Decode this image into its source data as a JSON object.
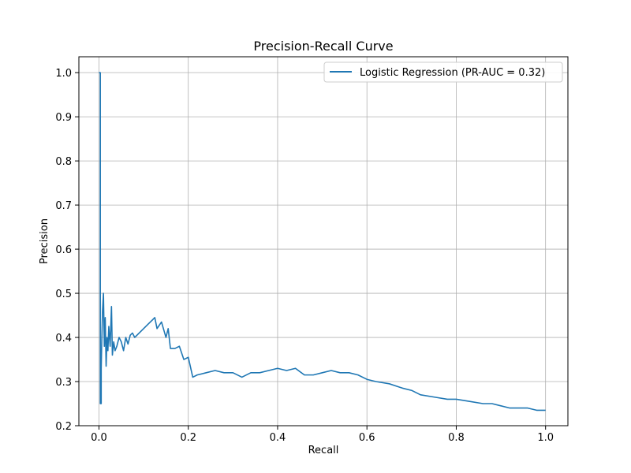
{
  "chart_data": {
    "type": "line",
    "title": "Precision-Recall Curve",
    "xlabel": "Recall",
    "ylabel": "Precision",
    "xlim": [
      -0.045,
      1.05
    ],
    "ylim": [
      0.2,
      1.036
    ],
    "xticks": [
      0.0,
      0.2,
      0.4,
      0.6,
      0.8,
      1.0
    ],
    "xtick_labels": [
      "0.0",
      "0.2",
      "0.4",
      "0.6",
      "0.8",
      "1.0"
    ],
    "yticks": [
      0.2,
      0.3,
      0.4,
      0.5,
      0.6,
      0.7,
      0.8,
      0.9,
      1.0
    ],
    "ytick_labels": [
      "0.2",
      "0.3",
      "0.4",
      "0.5",
      "0.6",
      "0.7",
      "0.8",
      "0.9",
      "1.0"
    ],
    "grid": true,
    "legend_position": "top-right",
    "series": [
      {
        "name": "Logistic Regression (PR-AUC = 0.32)",
        "color": "#1f77b4",
        "x": [
          0.0,
          0.002,
          0.003,
          0.003,
          0.005,
          0.005,
          0.006,
          0.008,
          0.01,
          0.012,
          0.014,
          0.016,
          0.018,
          0.02,
          0.022,
          0.025,
          0.028,
          0.03,
          0.033,
          0.036,
          0.04,
          0.045,
          0.05,
          0.055,
          0.06,
          0.065,
          0.07,
          0.075,
          0.08,
          0.09,
          0.1,
          0.11,
          0.12,
          0.125,
          0.13,
          0.14,
          0.15,
          0.155,
          0.16,
          0.17,
          0.18,
          0.19,
          0.2,
          0.21,
          0.22,
          0.24,
          0.26,
          0.28,
          0.3,
          0.32,
          0.34,
          0.36,
          0.38,
          0.4,
          0.42,
          0.44,
          0.46,
          0.48,
          0.5,
          0.52,
          0.54,
          0.56,
          0.58,
          0.6,
          0.62,
          0.65,
          0.68,
          0.7,
          0.72,
          0.75,
          0.78,
          0.8,
          0.83,
          0.86,
          0.88,
          0.9,
          0.92,
          0.94,
          0.96,
          0.98,
          1.0
        ],
        "y": [
          1.0,
          1.0,
          1.0,
          0.25,
          0.25,
          0.33,
          0.38,
          0.46,
          0.5,
          0.38,
          0.445,
          0.335,
          0.4,
          0.37,
          0.425,
          0.38,
          0.47,
          0.36,
          0.39,
          0.37,
          0.38,
          0.4,
          0.39,
          0.37,
          0.4,
          0.385,
          0.405,
          0.41,
          0.4,
          0.41,
          0.42,
          0.43,
          0.44,
          0.445,
          0.42,
          0.435,
          0.4,
          0.42,
          0.375,
          0.375,
          0.38,
          0.35,
          0.355,
          0.31,
          0.315,
          0.32,
          0.325,
          0.32,
          0.32,
          0.31,
          0.32,
          0.32,
          0.325,
          0.33,
          0.325,
          0.33,
          0.315,
          0.315,
          0.32,
          0.325,
          0.32,
          0.32,
          0.315,
          0.305,
          0.3,
          0.295,
          0.285,
          0.28,
          0.27,
          0.265,
          0.26,
          0.26,
          0.255,
          0.25,
          0.25,
          0.245,
          0.24,
          0.24,
          0.24,
          0.235,
          0.235
        ]
      }
    ]
  }
}
